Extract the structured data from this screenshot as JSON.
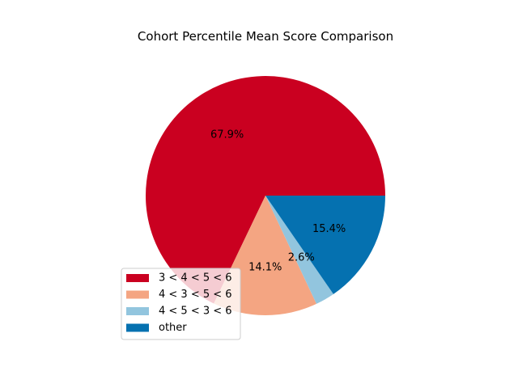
{
  "chart_data": {
    "type": "pie",
    "title": "Cohort Percentile Mean Score Comparison",
    "categories": [
      "3 < 4 < 5 < 6",
      "4 < 3 < 5 < 6",
      "4 < 5 < 3 < 6",
      "other"
    ],
    "values": [
      67.9,
      14.1,
      2.6,
      15.4
    ],
    "value_labels": [
      "67.9%",
      "14.1%",
      "2.6%",
      "15.4%"
    ],
    "colors": [
      "#ca0020",
      "#f4a582",
      "#92c5de",
      "#0571b0"
    ],
    "start_angle_deg": 0,
    "direction": "counterclockwise",
    "legend": {
      "placement": "lower-left"
    }
  }
}
